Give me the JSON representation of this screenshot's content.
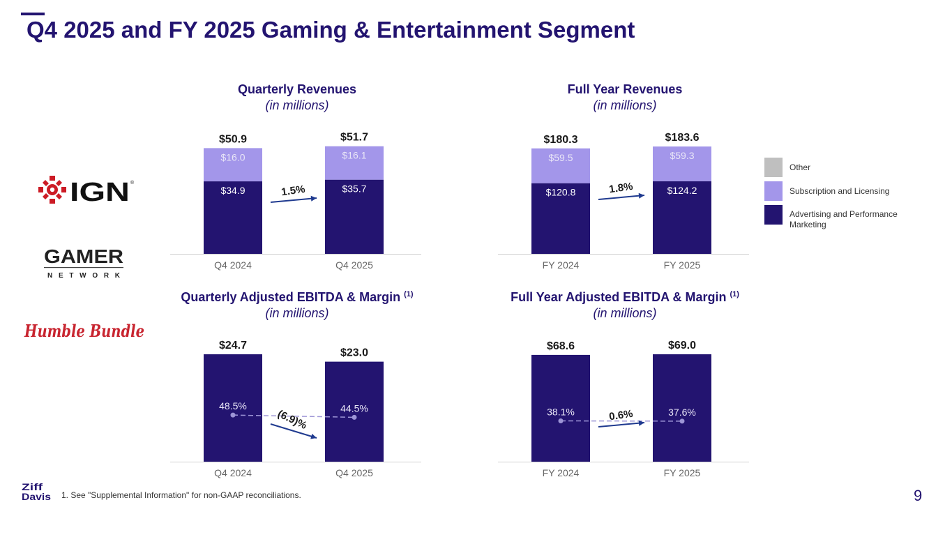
{
  "slide": {
    "title": "Q4 2025 and FY 2025 Gaming & Entertainment Segment",
    "footnote": "1.   See \"Supplemental Information\" for non-GAAP reconciliations.",
    "page_number": "9"
  },
  "brands": {
    "ign": "IGN",
    "ign_mark": "®",
    "gamer": "GAMER",
    "gamer_sub": "NETWORK",
    "humble": "Humble Bundle",
    "zd_line1": "Ziff",
    "zd_line2": "Davis"
  },
  "legend": {
    "items": [
      {
        "label": "Other",
        "color": "#bfbfbf"
      },
      {
        "label": "Subscription and Licensing",
        "color": "#a396ea"
      },
      {
        "label": "Advertising and Performance Marketing",
        "color": "#231470"
      }
    ]
  },
  "colors": {
    "advertising": "#231470",
    "subscription": "#a396ea",
    "other": "#bfbfbf",
    "arrow": "#1f3a8f",
    "margin_line": "#9d95d6"
  },
  "chart_data": [
    {
      "id": "quarterly-revenue",
      "type": "bar",
      "stacked": true,
      "title": "Quarterly Revenues",
      "subtitle": "(in millions)",
      "categories": [
        "Q4 2024",
        "Q4 2025"
      ],
      "series": [
        {
          "name": "Advertising and Performance Marketing",
          "values": [
            34.9,
            35.7
          ],
          "labels": [
            "$34.9",
            "$35.7"
          ]
        },
        {
          "name": "Subscription and Licensing",
          "values": [
            16.0,
            16.1
          ],
          "labels": [
            "$16.0",
            "$16.1"
          ]
        }
      ],
      "totals": [
        50.9,
        51.7
      ],
      "total_labels": [
        "$50.9",
        "$51.7"
      ],
      "growth": "1.5%",
      "growth_direction": "up",
      "ylim": [
        0,
        51.7
      ]
    },
    {
      "id": "full-year-revenue",
      "type": "bar",
      "stacked": true,
      "title": "Full Year Revenues",
      "subtitle": "(in millions)",
      "categories": [
        "FY 2024",
        "FY 2025"
      ],
      "series": [
        {
          "name": "Advertising and Performance Marketing",
          "values": [
            120.8,
            124.2
          ],
          "labels": [
            "$120.8",
            "$124.2"
          ]
        },
        {
          "name": "Subscription and Licensing",
          "values": [
            59.5,
            59.3
          ],
          "labels": [
            "$59.5",
            "$59.3"
          ]
        }
      ],
      "totals": [
        180.3,
        183.6
      ],
      "total_labels": [
        "$180.3",
        "$183.6"
      ],
      "growth": "1.8%",
      "growth_direction": "up",
      "ylim": [
        0,
        183.6
      ]
    },
    {
      "id": "quarterly-ebitda",
      "type": "bar",
      "stacked": false,
      "title": "Quarterly Adjusted EBITDA & Margin",
      "title_sup": "(1)",
      "subtitle": "(in millions)",
      "categories": [
        "Q4 2024",
        "Q4 2025"
      ],
      "series": [
        {
          "name": "Adjusted EBITDA",
          "values": [
            24.7,
            23.0
          ]
        }
      ],
      "total_labels": [
        "$24.7",
        "$23.0"
      ],
      "margins": [
        48.5,
        44.5
      ],
      "margin_labels": [
        "48.5%",
        "44.5%"
      ],
      "growth": "(6.9)%",
      "growth_direction": "down",
      "ylim": [
        0,
        24.7
      ]
    },
    {
      "id": "full-year-ebitda",
      "type": "bar",
      "stacked": false,
      "title": "Full Year Adjusted EBITDA & Margin",
      "title_sup": "(1)",
      "subtitle": "(in millions)",
      "categories": [
        "FY 2024",
        "FY 2025"
      ],
      "series": [
        {
          "name": "Adjusted EBITDA",
          "values": [
            68.6,
            69.0
          ]
        }
      ],
      "total_labels": [
        "$68.6",
        "$69.0"
      ],
      "margins": [
        38.1,
        37.6
      ],
      "margin_labels": [
        "38.1%",
        "37.6%"
      ],
      "growth": "0.6%",
      "growth_direction": "up",
      "ylim": [
        0,
        69.0
      ]
    }
  ]
}
